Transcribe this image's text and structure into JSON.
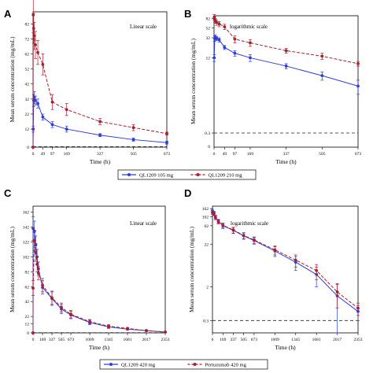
{
  "chart_data": [
    {
      "panel": "A",
      "type": "line",
      "annotation": "Linear scale",
      "scale": "linear",
      "xlabel": "Time (h)",
      "ylabel": "Mean serum concentration (mg/mL)",
      "xlim": [
        0,
        673
      ],
      "ylim": [
        0,
        90
      ],
      "xticks": [
        0,
        49,
        97,
        169,
        337,
        505,
        673
      ],
      "xtick_labels": [
        "0",
        "49",
        "97",
        "169",
        "337",
        "505",
        "673"
      ],
      "yticks": [
        0,
        12,
        22,
        32,
        42,
        52,
        62,
        72,
        82
      ],
      "ytick_labels": [
        "0",
        "12",
        "22",
        "32",
        "42",
        "52",
        "62",
        "72",
        "82"
      ],
      "reference_line": 0.3,
      "series": [
        {
          "name": "QL1209 105 mg",
          "color": "#2f3ed8",
          "style": "solid",
          "x": [
            0,
            1,
            3,
            6,
            12,
            24,
            49,
            97,
            169,
            337,
            505,
            673
          ],
          "y": [
            0,
            12,
            31,
            33,
            31,
            29,
            20,
            15,
            12,
            8,
            5,
            3
          ],
          "err": [
            0,
            2,
            4,
            4,
            3,
            3,
            2,
            2,
            2,
            1,
            1,
            1
          ]
        },
        {
          "name": "QL1209 210 mg",
          "color": "#a81f2d",
          "style": "dashed",
          "x": [
            0,
            1,
            3,
            6,
            12,
            24,
            49,
            97,
            169,
            337,
            505,
            673
          ],
          "y": [
            0,
            88,
            79,
            74,
            68,
            63,
            55,
            30,
            25,
            17,
            13,
            9
          ],
          "err": [
            0,
            12,
            10,
            9,
            9,
            8,
            7,
            5,
            4,
            2,
            2,
            1
          ]
        }
      ]
    },
    {
      "panel": "B",
      "type": "line",
      "annotation": "logarithmic scale",
      "scale": "log",
      "xlabel": "Time (h)",
      "ylabel": "Mean serum concentration (mg/mL)",
      "xlim": [
        0,
        673
      ],
      "xticks": [
        0,
        49,
        97,
        169,
        337,
        505,
        673
      ],
      "xtick_labels": [
        "0",
        "49",
        "97",
        "169",
        "337",
        "505",
        "673"
      ],
      "yticks": [
        0.3,
        12,
        32,
        52,
        82
      ],
      "ytick_labels": [
        "0.3",
        "12",
        "32",
        "52",
        "82"
      ],
      "extra_y_label": "0",
      "reference_line": 0.3,
      "series": [
        {
          "name": "QL1209 105 mg",
          "color": "#2f3ed8",
          "style": "solid",
          "x": [
            1,
            3,
            6,
            12,
            24,
            49,
            97,
            169,
            337,
            505,
            673
          ],
          "y": [
            12,
            31,
            33,
            31,
            29,
            20,
            15,
            12,
            8,
            5,
            3
          ],
          "err": [
            2,
            4,
            4,
            3,
            3,
            2,
            2,
            2,
            1,
            1,
            1
          ]
        },
        {
          "name": "QL1209 210 mg",
          "color": "#a81f2d",
          "style": "dashed",
          "x": [
            1,
            3,
            6,
            12,
            24,
            49,
            97,
            169,
            337,
            505,
            673
          ],
          "y": [
            88,
            79,
            74,
            68,
            63,
            55,
            30,
            25,
            17,
            13,
            9
          ],
          "err": [
            12,
            10,
            9,
            9,
            8,
            7,
            5,
            4,
            2,
            2,
            1
          ]
        }
      ]
    },
    {
      "panel": "C",
      "type": "line",
      "annotation": "Linear scale",
      "scale": "linear",
      "xlabel": "Time (h)",
      "ylabel": "Mean serum concentration (mg/mL)",
      "xlim": [
        0,
        2353
      ],
      "ylim": [
        0,
        170
      ],
      "xticks": [
        0,
        169,
        337,
        505,
        673,
        1009,
        1345,
        1681,
        2017,
        2353
      ],
      "xtick_labels": [
        "0",
        "169",
        "337",
        "505",
        "673",
        "1009",
        "1345",
        "1681",
        "2017",
        "2353"
      ],
      "yticks": [
        0,
        12,
        22,
        42,
        62,
        82,
        102,
        122,
        142,
        162
      ],
      "ytick_labels": [
        "0",
        "12",
        "22",
        "42",
        "62",
        "82",
        "102",
        "122",
        "142",
        "162"
      ],
      "reference_line": 0.3,
      "series": [
        {
          "name": "QL1209 420 mg",
          "color": "#2f3ed8",
          "style": "solid",
          "x": [
            0,
            1,
            24,
            48,
            72,
            96,
            169,
            337,
            505,
            673,
            1009,
            1345,
            1681,
            2017,
            2353
          ],
          "y": [
            0,
            140,
            136,
            118,
            102,
            86,
            61,
            46,
            32,
            24,
            14,
            8,
            5,
            3,
            1
          ],
          "err": [
            0,
            16,
            14,
            12,
            10,
            9,
            9,
            9,
            6,
            5,
            3,
            2,
            1,
            1,
            0.5
          ]
        },
        {
          "name": "Pertuzumab 420 mg",
          "color": "#a81f2d",
          "style": "dashed",
          "x": [
            0,
            1,
            24,
            48,
            72,
            96,
            169,
            337,
            505,
            673,
            1009,
            1345,
            1681,
            2017,
            2353
          ],
          "y": [
            0,
            60,
            124,
            108,
            92,
            80,
            64,
            47,
            34,
            25,
            15,
            9,
            6,
            3,
            1.2
          ],
          "err": [
            0,
            10,
            14,
            12,
            10,
            9,
            9,
            9,
            6,
            5,
            3,
            2,
            1,
            1,
            0.5
          ]
        }
      ]
    },
    {
      "panel": "D",
      "type": "line",
      "annotation": "logarithmic scale",
      "scale": "log",
      "xlabel": "Time (h)",
      "ylabel": "Mean serum concentration (mg/mL)",
      "xlim": [
        0,
        2353
      ],
      "xticks": [
        0,
        169,
        337,
        505,
        673,
        1009,
        1345,
        1681,
        2017,
        2353
      ],
      "xtick_labels": [
        "0",
        "169",
        "337",
        "505",
        "673",
        "1009",
        "1345",
        "1681",
        "2017",
        "2353"
      ],
      "yticks": [
        0.3,
        2,
        22,
        62,
        102,
        162
      ],
      "ytick_labels": [
        "0.3",
        "2",
        "22",
        "62",
        "102",
        "162"
      ],
      "reference_line": 0.3,
      "series": [
        {
          "name": "QL1209 420 mg",
          "color": "#2f3ed8",
          "style": "solid",
          "x": [
            1,
            24,
            48,
            96,
            169,
            337,
            505,
            673,
            1009,
            1345,
            1681,
            2017,
            2353
          ],
          "y": [
            140,
            125,
            100,
            80,
            62,
            48,
            35,
            27,
            15,
            8,
            4,
            1.2,
            0.5
          ],
          "err": [
            16,
            14,
            12,
            9,
            9,
            8,
            6,
            5,
            4,
            3,
            2,
            1.1,
            0.2
          ]
        },
        {
          "name": "Pertuzumab 420 mg",
          "color": "#a81f2d",
          "style": "dashed",
          "x": [
            1,
            24,
            48,
            96,
            169,
            337,
            505,
            673,
            1009,
            1345,
            1681,
            2017,
            2353
          ],
          "y": [
            130,
            122,
            98,
            78,
            64,
            49,
            36,
            28,
            16,
            9,
            5,
            1.5,
            0.6
          ],
          "err": [
            14,
            13,
            11,
            9,
            8,
            8,
            6,
            5,
            4,
            3,
            2,
            0.9,
            0.2
          ]
        }
      ]
    }
  ],
  "legends": [
    {
      "name": "legend-top",
      "items": [
        "QL1209 105 mg",
        "QL1209 210 mg"
      ],
      "colors": [
        "#2f3ed8",
        "#a81f2d"
      ]
    },
    {
      "name": "legend-bottom",
      "items": [
        "QL1209 420 mg",
        "Pertuzumab 420 mg"
      ],
      "colors": [
        "#2f3ed8",
        "#a81f2d"
      ]
    }
  ]
}
